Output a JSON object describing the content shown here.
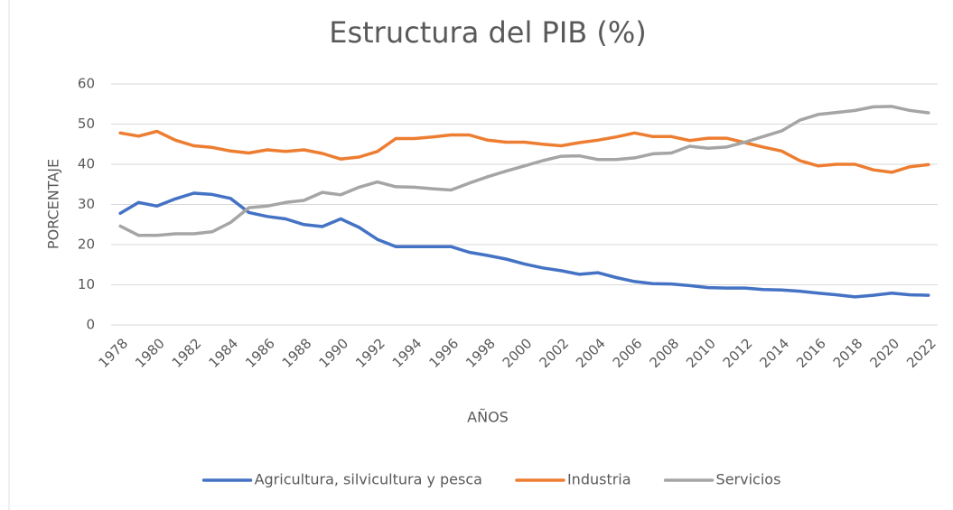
{
  "chart_data": {
    "type": "line",
    "title": "Estructura del PIB (%)",
    "x_label": "AÑOS",
    "y_label": "PORCENTAJE",
    "categories": [
      "1978",
      null,
      "1980",
      null,
      "1982",
      null,
      "1984",
      null,
      "1986",
      null,
      "1988",
      null,
      "1990",
      null,
      "1992",
      null,
      "1994",
      null,
      "1996",
      null,
      "1998",
      null,
      "2000",
      null,
      "2002",
      null,
      "2004",
      null,
      "2006",
      null,
      "2008",
      null,
      "2010",
      null,
      "2012",
      null,
      "2014",
      null,
      "2016",
      null,
      "2018",
      null,
      "2020",
      null,
      "2022"
    ],
    "series": [
      {
        "name": "Agricultura, silvicultura y pesca",
        "color": "#4472c4",
        "values": [
          27.8,
          30.5,
          29.6,
          31.4,
          32.8,
          32.5,
          31.5,
          28,
          27,
          26.4,
          25,
          24.5,
          26.4,
          24.3,
          21.3,
          19.5,
          19.5,
          19.5,
          19.5,
          18.1,
          17.3,
          16.4,
          15.2,
          14.2,
          13.5,
          12.6,
          13.0,
          11.8,
          10.8,
          10.3,
          10.2,
          9.8,
          9.3,
          9.2,
          9.2,
          8.8,
          8.7,
          8.4,
          7.9,
          7.5,
          7.0,
          7.4,
          7.9,
          7.5,
          7.4
        ]
      },
      {
        "name": "Industria",
        "color": "#ed7d31",
        "values": [
          47.8,
          47,
          48.2,
          46,
          44.6,
          44.2,
          43.3,
          42.8,
          43.6,
          43.2,
          43.6,
          42.7,
          41.3,
          41.8,
          43.2,
          46.4,
          46.4,
          46.8,
          47.3,
          47.3,
          46,
          45.5,
          45.5,
          45,
          44.6,
          45.4,
          46,
          46.8,
          47.8,
          46.9,
          46.9,
          45.9,
          46.5,
          46.5,
          45.4,
          44.3,
          43.3,
          40.9,
          39.6,
          40,
          40,
          38.6,
          38,
          39.4,
          39.9
        ]
      },
      {
        "name": "Servicios",
        "color": "#a5a5a5",
        "values": [
          24.6,
          22.3,
          22.3,
          22.7,
          22.7,
          23.2,
          25.5,
          29.2,
          29.6,
          30.5,
          31,
          33,
          32.4,
          34.3,
          35.6,
          34.4,
          34.3,
          33.9,
          33.6,
          35.3,
          36.9,
          38.3,
          39.6,
          40.9,
          42,
          42.1,
          41.2,
          41.2,
          41.6,
          42.6,
          42.8,
          44.5,
          44,
          44.3,
          45.5,
          46.9,
          48.3,
          51,
          52.4,
          52.9,
          53.4,
          54.3,
          54.4,
          53.4,
          52.8
        ]
      }
    ],
    "ylim": [
      0,
      60
    ],
    "yticks": [
      0,
      10,
      20,
      30,
      40,
      50,
      60
    ],
    "grid": true,
    "legend": "bottom"
  }
}
